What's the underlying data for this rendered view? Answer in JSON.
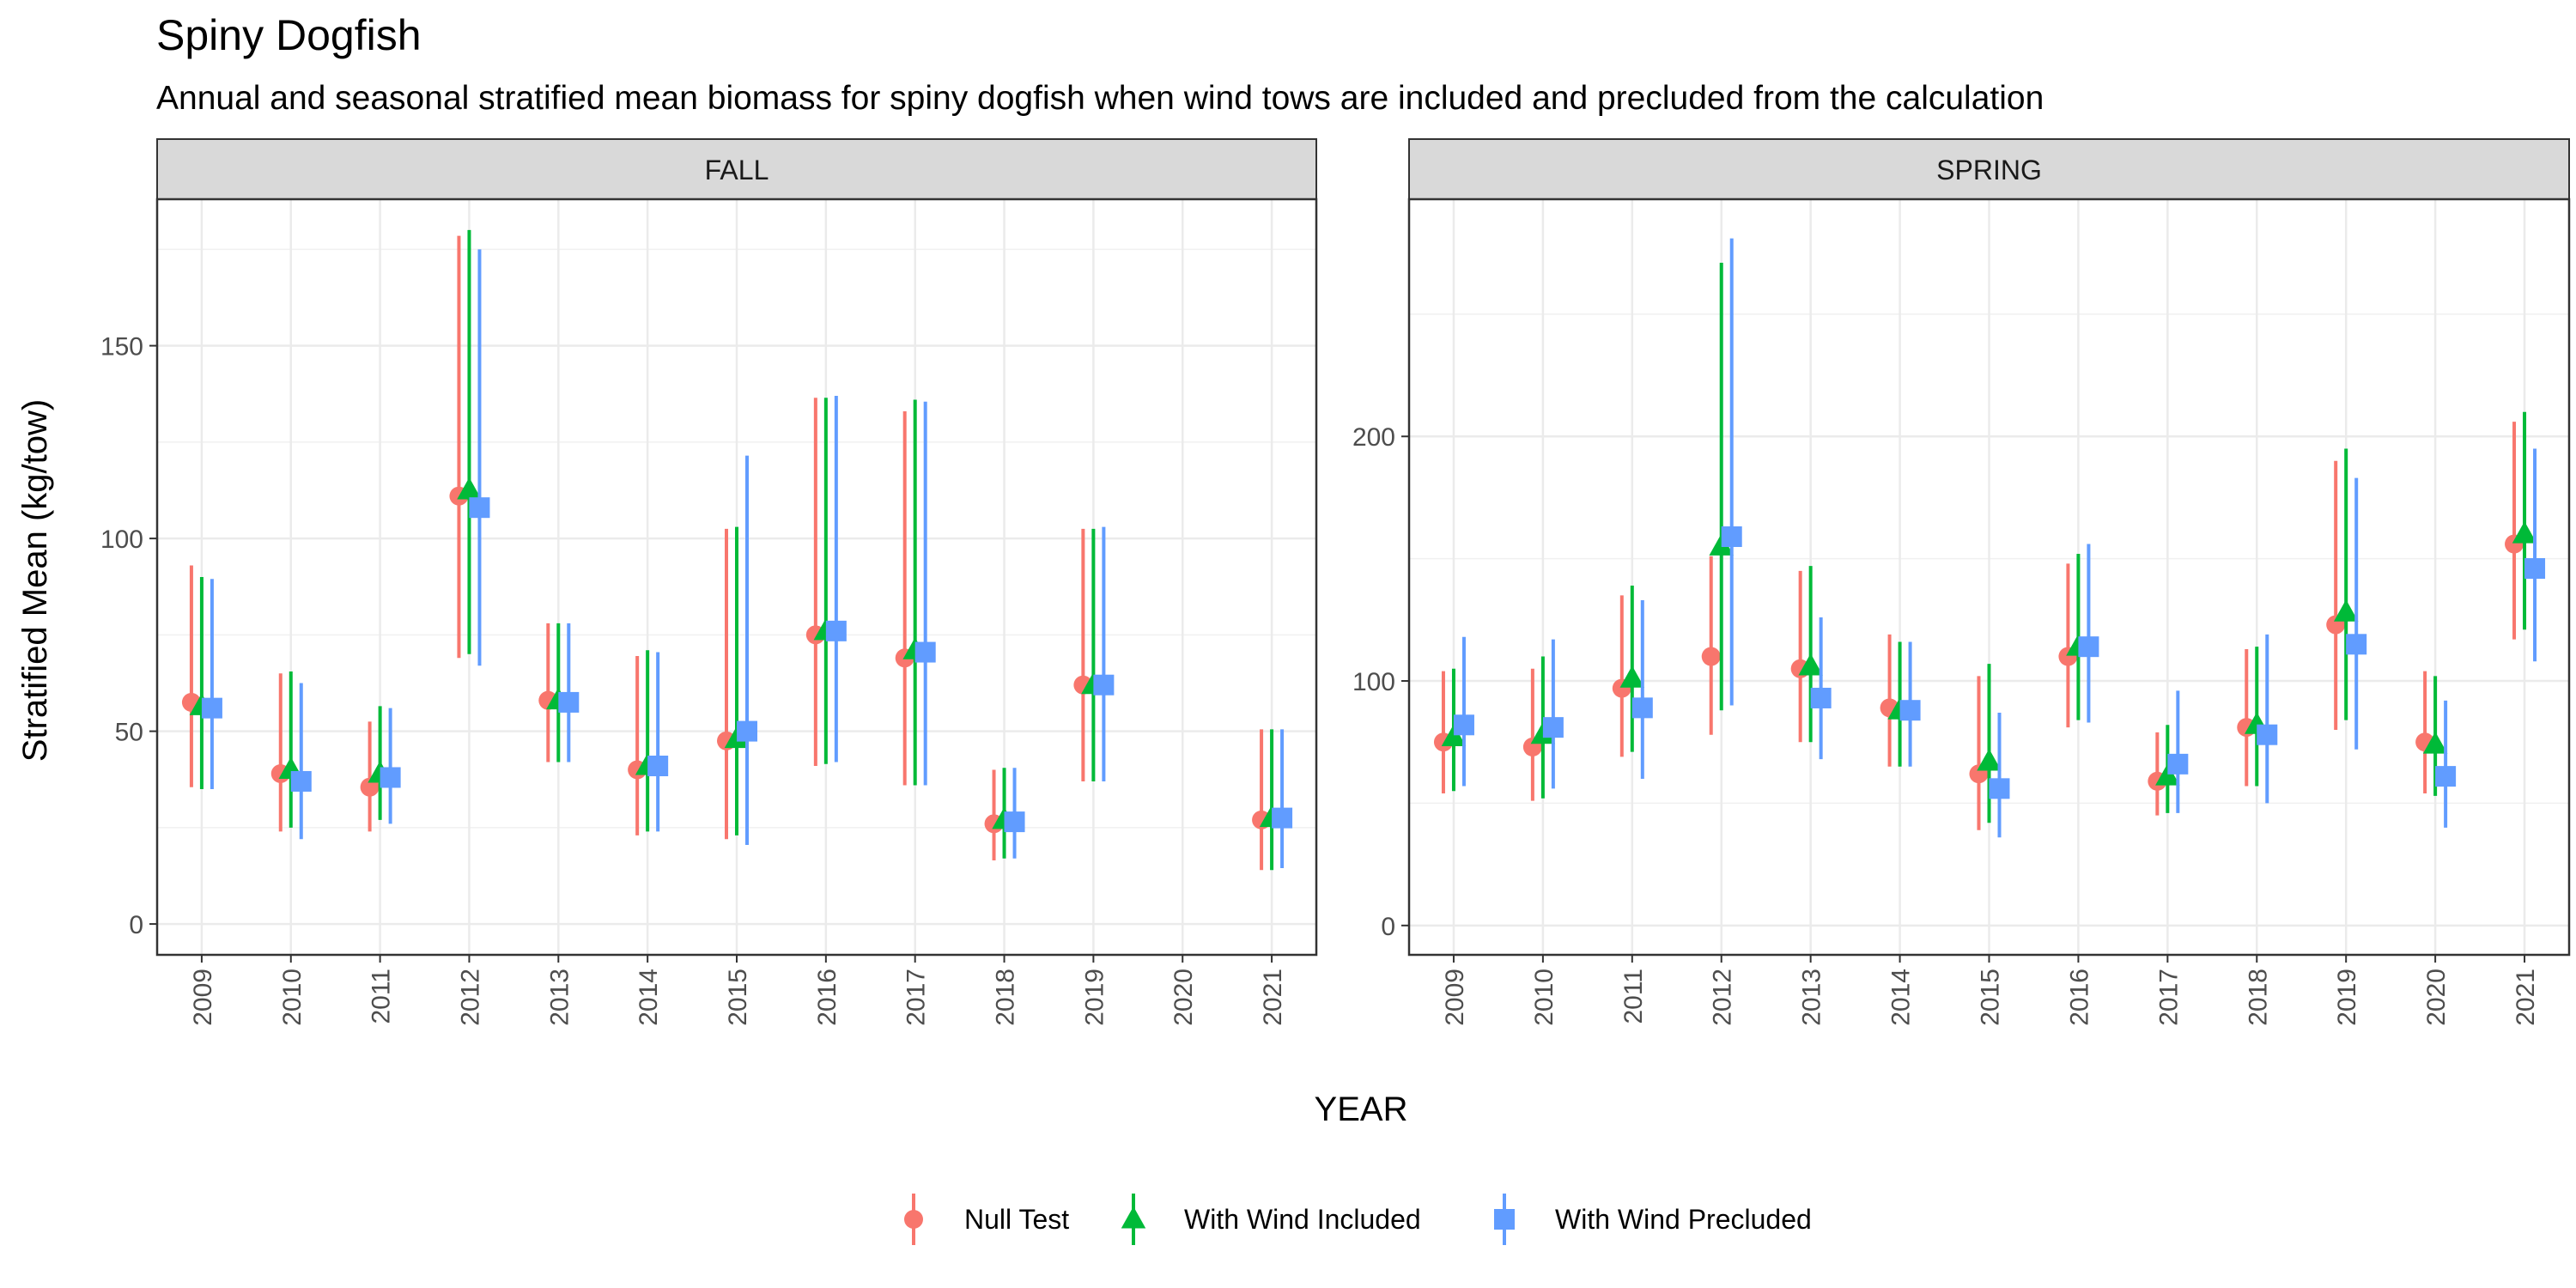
{
  "chart_data": {
    "type": "scatter",
    "title": "Spiny Dogfish",
    "subtitle": "Annual and seasonal stratified mean biomass for spiny dogfish when wind tows are included and precluded from the calculation",
    "xlabel": "YEAR",
    "ylabel": "Stratified Mean (kg/tow)",
    "categories": [
      "2009",
      "2010",
      "2011",
      "2012",
      "2013",
      "2014",
      "2015",
      "2016",
      "2017",
      "2018",
      "2019",
      "2020",
      "2021"
    ],
    "legend": {
      "placement": "bottom",
      "entries": [
        {
          "name": "Null Test",
          "color": "#F8766D",
          "shape": "circle"
        },
        {
          "name": "With Wind Included",
          "color": "#00BA38",
          "shape": "triangle"
        },
        {
          "name": "With Wind Precluded",
          "color": "#619CFF",
          "shape": "square"
        }
      ]
    },
    "grid": true,
    "panels": [
      {
        "name": "FALL",
        "ylim": [
          -8,
          188
        ],
        "yticks": [
          0,
          50,
          100,
          150
        ],
        "series": [
          {
            "name": "Null Test",
            "points": [
              {
                "x": "2009",
                "y": 57.5,
                "lo": 35.5,
                "hi": 93
              },
              {
                "x": "2010",
                "y": 39,
                "lo": 24,
                "hi": 65
              },
              {
                "x": "2011",
                "y": 35.5,
                "lo": 24,
                "hi": 52.5
              },
              {
                "x": "2012",
                "y": 111,
                "lo": 69,
                "hi": 178.5
              },
              {
                "x": "2013",
                "y": 58,
                "lo": 42,
                "hi": 78
              },
              {
                "x": "2014",
                "y": 40,
                "lo": 23,
                "hi": 69.5
              },
              {
                "x": "2015",
                "y": 47.5,
                "lo": 22,
                "hi": 102.5
              },
              {
                "x": "2016",
                "y": 75,
                "lo": 41,
                "hi": 136.5
              },
              {
                "x": "2017",
                "y": 69,
                "lo": 36,
                "hi": 133
              },
              {
                "x": "2018",
                "y": 26,
                "lo": 16.5,
                "hi": 40
              },
              {
                "x": "2019",
                "y": 62,
                "lo": 37,
                "hi": 102.5
              },
              {
                "x": "2021",
                "y": 27,
                "lo": 14,
                "hi": 50.5
              }
            ]
          },
          {
            "name": "With Wind Included",
            "points": [
              {
                "x": "2009",
                "y": 56.5,
                "lo": 35,
                "hi": 90
              },
              {
                "x": "2010",
                "y": 40,
                "lo": 25,
                "hi": 65.5
              },
              {
                "x": "2011",
                "y": 39,
                "lo": 27,
                "hi": 56.5
              },
              {
                "x": "2012",
                "y": 112.5,
                "lo": 70,
                "hi": 180
              },
              {
                "x": "2013",
                "y": 58,
                "lo": 42,
                "hi": 78
              },
              {
                "x": "2014",
                "y": 41,
                "lo": 24,
                "hi": 71
              },
              {
                "x": "2015",
                "y": 48,
                "lo": 23,
                "hi": 103
              },
              {
                "x": "2016",
                "y": 76,
                "lo": 41.5,
                "hi": 136.5
              },
              {
                "x": "2017",
                "y": 71,
                "lo": 36,
                "hi": 136
              },
              {
                "x": "2018",
                "y": 27,
                "lo": 17,
                "hi": 40.5
              },
              {
                "x": "2019",
                "y": 62,
                "lo": 37,
                "hi": 102.5
              },
              {
                "x": "2021",
                "y": 27.5,
                "lo": 14,
                "hi": 50.5
              }
            ]
          },
          {
            "name": "With Wind Precluded",
            "points": [
              {
                "x": "2009",
                "y": 56,
                "lo": 35,
                "hi": 89.5
              },
              {
                "x": "2010",
                "y": 37,
                "lo": 22,
                "hi": 62.5
              },
              {
                "x": "2011",
                "y": 38,
                "lo": 26,
                "hi": 56
              },
              {
                "x": "2012",
                "y": 108,
                "lo": 67,
                "hi": 175
              },
              {
                "x": "2013",
                "y": 57.5,
                "lo": 42,
                "hi": 78
              },
              {
                "x": "2014",
                "y": 41,
                "lo": 24,
                "hi": 70.5
              },
              {
                "x": "2015",
                "y": 50,
                "lo": 20.5,
                "hi": 121.5
              },
              {
                "x": "2016",
                "y": 76,
                "lo": 42,
                "hi": 137
              },
              {
                "x": "2017",
                "y": 70.5,
                "lo": 36,
                "hi": 135.5
              },
              {
                "x": "2018",
                "y": 26.5,
                "lo": 17,
                "hi": 40.5
              },
              {
                "x": "2019",
                "y": 62,
                "lo": 37,
                "hi": 103
              },
              {
                "x": "2021",
                "y": 27.5,
                "lo": 14.5,
                "hi": 50.5
              }
            ]
          }
        ]
      },
      {
        "name": "SPRING",
        "ylim": [
          -12,
          297
        ],
        "yticks": [
          0,
          100,
          200
        ],
        "series": [
          {
            "name": "Null Test",
            "points": [
              {
                "x": "2009",
                "y": 75,
                "lo": 54,
                "hi": 104
              },
              {
                "x": "2010",
                "y": 73,
                "lo": 51,
                "hi": 105
              },
              {
                "x": "2011",
                "y": 97,
                "lo": 69,
                "hi": 135
              },
              {
                "x": "2012",
                "y": 110,
                "lo": 78,
                "hi": 151
              },
              {
                "x": "2013",
                "y": 105,
                "lo": 75,
                "hi": 145
              },
              {
                "x": "2014",
                "y": 89,
                "lo": 65,
                "hi": 119
              },
              {
                "x": "2015",
                "y": 62,
                "lo": 39,
                "hi": 102
              },
              {
                "x": "2016",
                "y": 110,
                "lo": 81,
                "hi": 148
              },
              {
                "x": "2017",
                "y": 59,
                "lo": 45,
                "hi": 79
              },
              {
                "x": "2018",
                "y": 81,
                "lo": 57,
                "hi": 113
              },
              {
                "x": "2019",
                "y": 123,
                "lo": 80,
                "hi": 190
              },
              {
                "x": "2020",
                "y": 75,
                "lo": 54,
                "hi": 104
              },
              {
                "x": "2021",
                "y": 156,
                "lo": 117,
                "hi": 206
              }
            ]
          },
          {
            "name": "With Wind Included",
            "points": [
              {
                "x": "2009",
                "y": 77,
                "lo": 55,
                "hi": 105
              },
              {
                "x": "2010",
                "y": 78,
                "lo": 52,
                "hi": 110
              },
              {
                "x": "2011",
                "y": 101,
                "lo": 71,
                "hi": 139
              },
              {
                "x": "2012",
                "y": 155,
                "lo": 88,
                "hi": 271
              },
              {
                "x": "2013",
                "y": 106,
                "lo": 75,
                "hi": 147
              },
              {
                "x": "2014",
                "y": 88,
                "lo": 65,
                "hi": 116
              },
              {
                "x": "2015",
                "y": 67,
                "lo": 42,
                "hi": 107
              },
              {
                "x": "2016",
                "y": 114,
                "lo": 84,
                "hi": 152
              },
              {
                "x": "2017",
                "y": 61,
                "lo": 46,
                "hi": 82
              },
              {
                "x": "2018",
                "y": 82,
                "lo": 57,
                "hi": 114
              },
              {
                "x": "2019",
                "y": 128,
                "lo": 84,
                "hi": 195
              },
              {
                "x": "2020",
                "y": 74,
                "lo": 53,
                "hi": 102
              },
              {
                "x": "2021",
                "y": 160,
                "lo": 121,
                "hi": 210
              }
            ]
          },
          {
            "name": "With Wind Precluded",
            "points": [
              {
                "x": "2009",
                "y": 82,
                "lo": 57,
                "hi": 118
              },
              {
                "x": "2010",
                "y": 81,
                "lo": 56,
                "hi": 117
              },
              {
                "x": "2011",
                "y": 89,
                "lo": 60,
                "hi": 133
              },
              {
                "x": "2012",
                "y": 159,
                "lo": 90,
                "hi": 281
              },
              {
                "x": "2013",
                "y": 93,
                "lo": 68,
                "hi": 126
              },
              {
                "x": "2014",
                "y": 88,
                "lo": 65,
                "hi": 116
              },
              {
                "x": "2015",
                "y": 56,
                "lo": 36,
                "hi": 87
              },
              {
                "x": "2016",
                "y": 114,
                "lo": 83,
                "hi": 156
              },
              {
                "x": "2017",
                "y": 66,
                "lo": 46,
                "hi": 96
              },
              {
                "x": "2018",
                "y": 78,
                "lo": 50,
                "hi": 119
              },
              {
                "x": "2019",
                "y": 115,
                "lo": 72,
                "hi": 183
              },
              {
                "x": "2020",
                "y": 61,
                "lo": 40,
                "hi": 92
              },
              {
                "x": "2021",
                "y": 146,
                "lo": 108,
                "hi": 195
              }
            ]
          }
        ]
      }
    ]
  }
}
